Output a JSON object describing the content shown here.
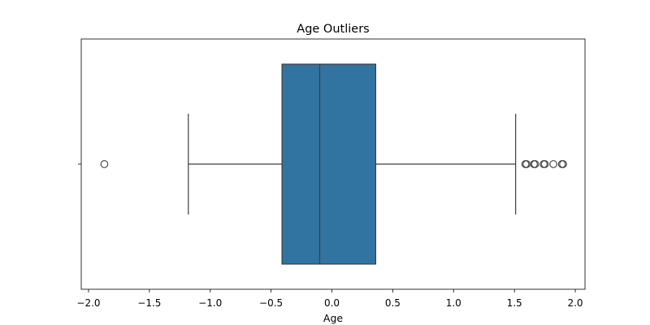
{
  "chart_data": {
    "type": "boxplot",
    "title": "Age Outliers",
    "xlabel": "Age",
    "ylabel": "",
    "xlim": [
      -2.06,
      2.08
    ],
    "xticks": [
      -2.0,
      -1.5,
      -1.0,
      -0.5,
      0.0,
      0.5,
      1.0,
      1.5,
      2.0
    ],
    "xtick_labels": [
      "−2.0",
      "−1.5",
      "−1.0",
      "−0.5",
      "0.0",
      "0.5",
      "1.0",
      "1.5",
      "2.0"
    ],
    "grid": false,
    "orientation": "horizontal",
    "box": {
      "whisker_low": -1.18,
      "q1": -0.41,
      "median": -0.1,
      "q3": 0.36,
      "whisker_high": 1.51,
      "fill_color": "#3274a1",
      "edge_color": "#3d3d3d"
    },
    "outliers": [
      -1.87,
      1.59,
      1.6,
      1.66,
      1.67,
      1.74,
      1.75,
      1.82,
      1.89,
      1.9
    ]
  }
}
